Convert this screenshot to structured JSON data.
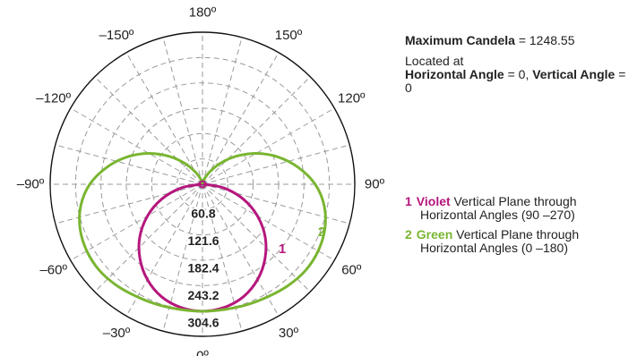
{
  "chart_data": {
    "type": "polar-line",
    "angle_labels": [
      {
        "deg": 180,
        "text": "180º"
      },
      {
        "deg": -150,
        "text": "–150º"
      },
      {
        "deg": 150,
        "text": "150º"
      },
      {
        "deg": -120,
        "text": "–120º"
      },
      {
        "deg": 120,
        "text": "120º"
      },
      {
        "deg": -90,
        "text": "–90º"
      },
      {
        "deg": 90,
        "text": "90º"
      },
      {
        "deg": -60,
        "text": "–60º"
      },
      {
        "deg": 60,
        "text": "60º"
      },
      {
        "deg": -30,
        "text": "–30º"
      },
      {
        "deg": 30,
        "text": "30º"
      },
      {
        "deg": 0,
        "text": "0º"
      }
    ],
    "radial_ticks": [
      {
        "value": 60.8,
        "label": "60.8"
      },
      {
        "value": 121.6,
        "label": "121.6"
      },
      {
        "value": 182.4,
        "label": "182.4"
      },
      {
        "value": 243.2,
        "label": "243.2"
      },
      {
        "value": 304.6,
        "label": "304.6"
      }
    ],
    "rmax": 364.8,
    "series": [
      {
        "id": "1",
        "name": "Violet",
        "color": "#b5177d",
        "angles_deg": [
          0,
          10,
          20,
          30,
          40,
          50,
          60,
          70,
          80,
          90,
          100,
          110,
          120,
          130,
          140,
          150,
          160,
          170,
          180
        ],
        "values": [
          304.6,
          300,
          287,
          264,
          233,
          196,
          152,
          104,
          53,
          5,
          3,
          2.5,
          2,
          2,
          2,
          2,
          2,
          2,
          2
        ]
      },
      {
        "id": "2",
        "name": "Green",
        "color": "#7ab532",
        "angles_deg": [
          0,
          10,
          20,
          30,
          40,
          50,
          60,
          70,
          80,
          90,
          100,
          110,
          120,
          130,
          140,
          150,
          160,
          170,
          180
        ],
        "values": [
          304.6,
          305,
          308,
          312,
          318,
          322,
          320,
          312,
          296,
          270,
          233,
          192,
          148,
          104,
          65,
          34,
          14,
          5,
          3
        ]
      }
    ]
  },
  "info": {
    "max_label": "Maximum Candela",
    "max_eq": " = 1248.55",
    "located": "Located at",
    "h_label": "Horizontal Angle",
    "h_eq": " = 0, ",
    "v_label": "Vertical Angle",
    "v_eq": " = 0"
  },
  "legend": [
    {
      "num": "1",
      "name": "Violet",
      "line1": " Vertical Plane through",
      "line2": "Horizontal Angles (90 –270)",
      "color": "#b5177d"
    },
    {
      "num": "2",
      "name": "Green",
      "line1": " Vertical Plane through",
      "line2": "Horizontal Angles (0 –180)",
      "color": "#7ab532"
    }
  ]
}
